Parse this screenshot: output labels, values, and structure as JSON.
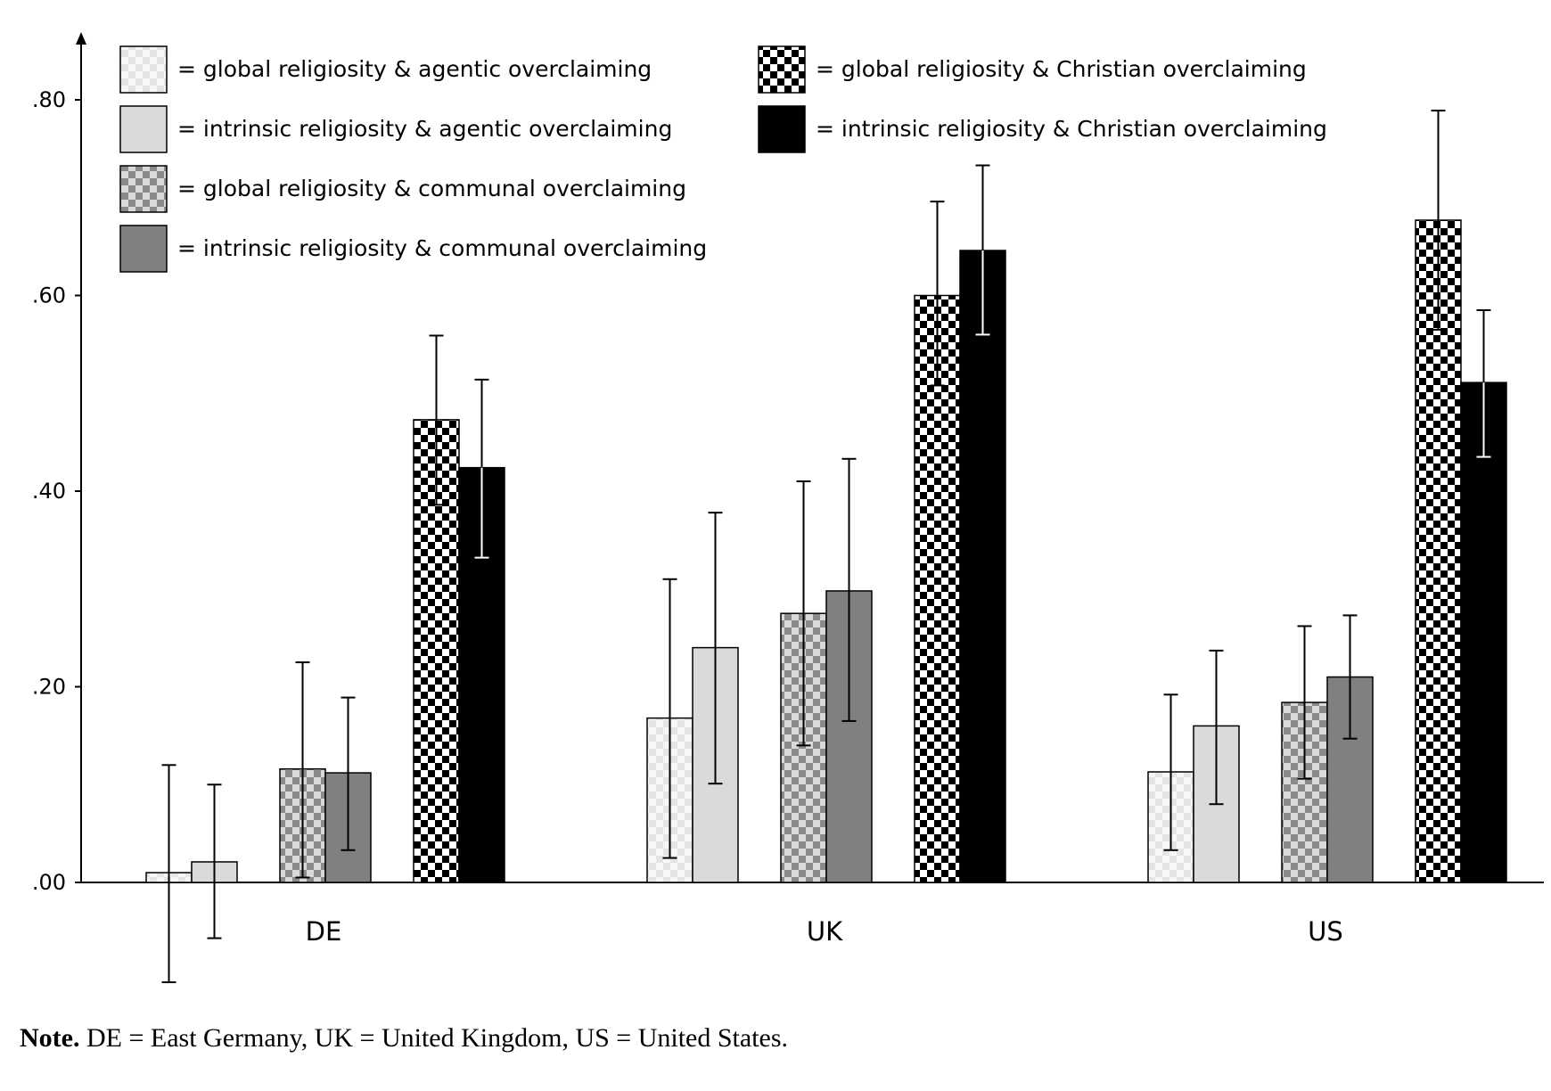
{
  "chart_data": {
    "type": "bar",
    "categories": [
      "DE",
      "UK",
      "US"
    ],
    "y_ticks": [
      ".00",
      ".20",
      ".40",
      ".60",
      ".80"
    ],
    "ylim": [
      0,
      0.8
    ],
    "grid": false,
    "legend_placement": "top-left, two columns",
    "series": [
      {
        "name": "global religiosity & agentic overclaiming",
        "pattern": "checker-light",
        "values": [
          0.01,
          0.168,
          0.113
        ],
        "ci_low": [
          -0.102,
          0.025,
          0.033
        ],
        "ci_high": [
          0.12,
          0.31,
          0.192
        ]
      },
      {
        "name": "intrinsic religiosity & agentic overclaiming",
        "pattern": "solid-light",
        "values": [
          0.021,
          0.24,
          0.16
        ],
        "ci_low": [
          -0.057,
          0.101,
          0.08
        ],
        "ci_high": [
          0.1,
          0.378,
          0.237
        ]
      },
      {
        "name": "global religiosity & communal overclaiming",
        "pattern": "checker-medium",
        "values": [
          0.116,
          0.275,
          0.184
        ],
        "ci_low": [
          0.005,
          0.14,
          0.106
        ],
        "ci_high": [
          0.225,
          0.41,
          0.262
        ]
      },
      {
        "name": "intrinsic religiosity & communal overclaiming",
        "pattern": "solid-medium",
        "values": [
          0.112,
          0.298,
          0.21
        ],
        "ci_low": [
          0.033,
          0.165,
          0.147
        ],
        "ci_high": [
          0.189,
          0.433,
          0.273
        ]
      },
      {
        "name": "global religiosity & Christian overclaiming",
        "pattern": "checker-dark",
        "values": [
          0.473,
          0.6,
          0.677
        ],
        "ci_low": [
          0.386,
          0.508,
          0.565
        ],
        "ci_high": [
          0.559,
          0.696,
          0.789
        ]
      },
      {
        "name": "intrinsic religiosity & Christian overclaiming",
        "pattern": "solid-black",
        "values": [
          0.424,
          0.646,
          0.511
        ],
        "ci_low": [
          0.332,
          0.56,
          0.435
        ],
        "ci_high": [
          0.514,
          0.733,
          0.585
        ]
      }
    ],
    "colors": {
      "solid_light": "#dadada",
      "solid_medium": "#808080",
      "solid_black": "#000000",
      "checker_light_a": "#e4e4e4",
      "checker_light_b": "#f7f7f7",
      "checker_medium_a": "#8a8a8a",
      "checker_medium_b": "#d9d9d9",
      "checker_dark_a": "#000000",
      "checker_dark_b": "#ffffff"
    }
  },
  "legend_prefix": "=",
  "note": {
    "label": "Note.",
    "text": " DE = East Germany, UK = United Kingdom, US = United States."
  }
}
